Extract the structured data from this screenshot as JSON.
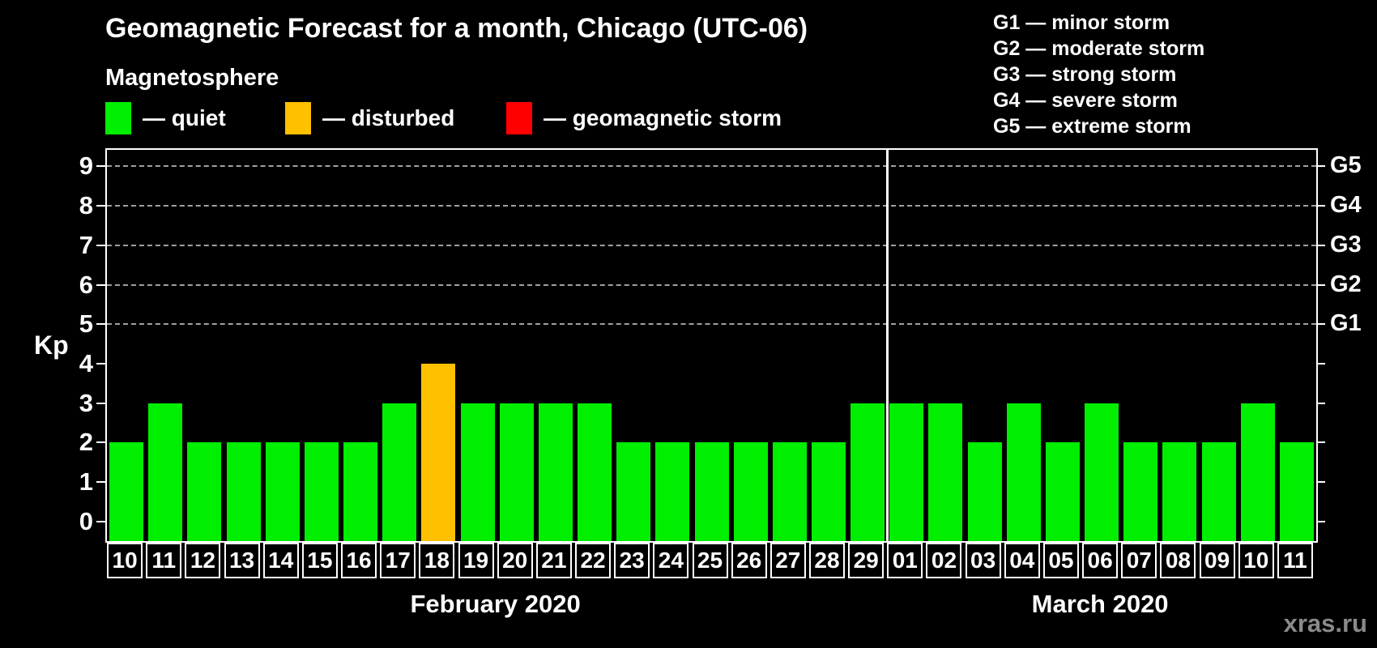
{
  "header": {
    "title": "Geomagnetic Forecast for a month, Chicago (UTC-06)",
    "subtitle": "Magnetosphere",
    "legend": [
      {
        "name": "quiet",
        "label": "— quiet",
        "color": "#00ee00"
      },
      {
        "name": "disturbed",
        "label": "— disturbed",
        "color": "#ffc000"
      },
      {
        "name": "storm",
        "label": "— geomagnetic storm",
        "color": "#ff0000"
      }
    ],
    "storm_scale": [
      "G1 — minor storm",
      "G2 — moderate storm",
      "G3 — strong storm",
      "G4 — severe storm",
      "G5 — extreme storm"
    ]
  },
  "watermark": "xras.ru",
  "chart_data": {
    "type": "bar",
    "title": "Geomagnetic Forecast for a month, Chicago (UTC-06)",
    "ylabel": "Kp",
    "ylim": [
      -0.5,
      9.42
    ],
    "yticks": [
      0,
      1,
      2,
      3,
      4,
      5,
      6,
      7,
      8,
      9
    ],
    "gridlines": [
      5,
      6,
      7,
      8,
      9
    ],
    "grid": true,
    "right_axis_labels": [
      {
        "kp": 5,
        "label": "G1"
      },
      {
        "kp": 6,
        "label": "G2"
      },
      {
        "kp": 7,
        "label": "G3"
      },
      {
        "kp": 8,
        "label": "G4"
      },
      {
        "kp": 9,
        "label": "G5"
      }
    ],
    "colors": {
      "quiet": "#00ee00",
      "disturbed": "#ffc000",
      "storm": "#ff0000"
    },
    "thresholds": {
      "disturbed_min": 4,
      "storm_min": 5
    },
    "months": [
      {
        "label": "February 2020",
        "days": [
          "10",
          "11",
          "12",
          "13",
          "14",
          "15",
          "16",
          "17",
          "18",
          "19",
          "20",
          "21",
          "22",
          "23",
          "24",
          "25",
          "26",
          "27",
          "28",
          "29"
        ],
        "values": [
          2,
          3,
          2,
          2,
          2,
          2,
          2,
          3,
          4,
          3,
          3,
          3,
          3,
          2,
          2,
          2,
          2,
          2,
          2,
          3
        ]
      },
      {
        "label": "March 2020",
        "days": [
          "01",
          "02",
          "03",
          "04",
          "05",
          "06",
          "07",
          "08",
          "09",
          "10",
          "11"
        ],
        "values": [
          3,
          3,
          2,
          3,
          2,
          3,
          2,
          2,
          2,
          3,
          2
        ]
      }
    ]
  }
}
